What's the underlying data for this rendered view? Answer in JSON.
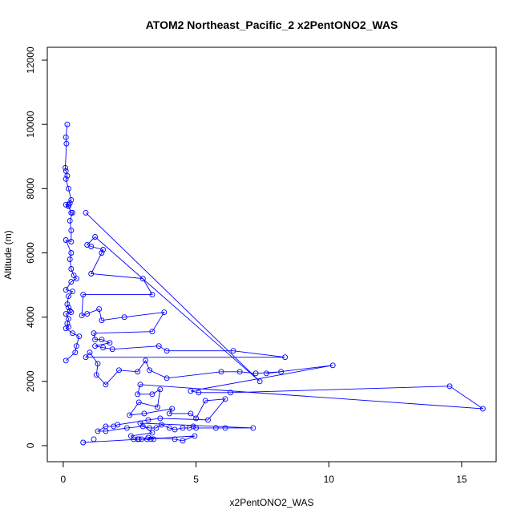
{
  "chart_data": {
    "type": "line",
    "title": "ATOM2 Northeast_Pacific_2 x2PentONO2_WAS",
    "xlabel": "x2PentONO2_WAS",
    "ylabel": "Altitude (m)",
    "xlim": [
      -0.6,
      16.3
    ],
    "ylim": [
      -500,
      12400
    ],
    "xticks": [
      0,
      5,
      10,
      15
    ],
    "yticks": [
      0,
      2000,
      4000,
      6000,
      8000,
      10000,
      12000
    ],
    "grid": false,
    "color": "#0000ff",
    "marker": "open-circle",
    "series": [
      {
        "points": [
          [
            0.15,
            10000
          ],
          [
            0.1,
            9600
          ],
          [
            0.12,
            9400
          ],
          [
            0.08,
            8650
          ],
          [
            0.1,
            8550
          ],
          [
            0.15,
            8400
          ],
          [
            0.1,
            8300
          ],
          [
            0.2,
            8000
          ],
          [
            0.3,
            7650
          ],
          [
            0.25,
            7550
          ],
          [
            0.2,
            7500
          ],
          [
            0.1,
            7500
          ],
          [
            0.2,
            7450
          ],
          [
            0.3,
            7250
          ],
          [
            0.35,
            7250
          ],
          [
            0.25,
            7000
          ],
          [
            0.3,
            6700
          ],
          [
            0.3,
            6350
          ],
          [
            0.1,
            6400
          ],
          [
            0.3,
            6000
          ],
          [
            0.25,
            5800
          ],
          [
            0.3,
            5500
          ],
          [
            0.4,
            5300
          ],
          [
            0.5,
            5200
          ],
          [
            0.3,
            5100
          ],
          [
            0.1,
            4850
          ],
          [
            0.35,
            4800
          ],
          [
            0.2,
            4650
          ],
          [
            0.15,
            4400
          ],
          [
            0.2,
            4300
          ],
          [
            0.25,
            4200
          ],
          [
            0.3,
            4150
          ],
          [
            0.1,
            4100
          ],
          [
            0.2,
            3950
          ],
          [
            0.15,
            3800
          ],
          [
            0.2,
            3700
          ],
          [
            0.1,
            3650
          ],
          [
            0.35,
            3500
          ],
          [
            0.6,
            3400
          ],
          [
            0.5,
            3100
          ],
          [
            0.45,
            2900
          ],
          [
            0.1,
            2650
          ],
          [
            0.85,
            7250
          ],
          [
            1.2,
            6500
          ],
          [
            0.9,
            6250
          ],
          [
            1.05,
            6200
          ],
          [
            1.5,
            6100
          ],
          [
            1.45,
            6000
          ],
          [
            1.05,
            5350
          ],
          [
            3.0,
            5200
          ],
          [
            3.35,
            4700
          ],
          [
            0.75,
            4700
          ],
          [
            0.7,
            4050
          ],
          [
            0.9,
            4100
          ],
          [
            1.35,
            4250
          ],
          [
            1.45,
            3900
          ],
          [
            2.3,
            4000
          ],
          [
            3.8,
            4150
          ],
          [
            3.35,
            3550
          ],
          [
            1.15,
            3500
          ],
          [
            1.2,
            3300
          ],
          [
            1.45,
            3300
          ],
          [
            1.75,
            3200
          ],
          [
            1.2,
            3100
          ],
          [
            1.5,
            3050
          ],
          [
            1.85,
            3000
          ],
          [
            3.6,
            3100
          ],
          [
            3.9,
            2950
          ],
          [
            6.4,
            2950
          ],
          [
            8.35,
            2750
          ],
          [
            0.85,
            2750
          ],
          [
            1.0,
            2900
          ],
          [
            1.3,
            2550
          ],
          [
            1.25,
            2200
          ],
          [
            1.6,
            1900
          ],
          [
            2.1,
            2350
          ],
          [
            2.8,
            2300
          ],
          [
            3.1,
            2650
          ],
          [
            3.25,
            2350
          ],
          [
            3.9,
            2100
          ],
          [
            5.95,
            2300
          ],
          [
            6.65,
            2300
          ],
          [
            7.25,
            2250
          ],
          [
            8.2,
            2300
          ],
          [
            7.65,
            2250
          ],
          [
            10.15,
            2500
          ],
          [
            7.4,
            2000
          ],
          [
            4.8,
            1700
          ],
          [
            5.1,
            1650
          ],
          [
            6.3,
            1650
          ],
          [
            14.55,
            1850
          ],
          [
            15.8,
            1150
          ],
          [
            2.9,
            1900
          ],
          [
            2.8,
            1600
          ],
          [
            3.35,
            1600
          ],
          [
            3.65,
            1750
          ],
          [
            3.55,
            1200
          ],
          [
            2.85,
            1350
          ],
          [
            2.5,
            950
          ],
          [
            3.05,
            1000
          ],
          [
            4.1,
            1150
          ],
          [
            4.0,
            1000
          ],
          [
            4.8,
            1000
          ],
          [
            5.0,
            850
          ],
          [
            5.35,
            1400
          ],
          [
            6.1,
            1450
          ],
          [
            5.45,
            800
          ],
          [
            3.65,
            850
          ],
          [
            3.2,
            800
          ],
          [
            2.05,
            650
          ],
          [
            1.9,
            600
          ],
          [
            1.6,
            600
          ],
          [
            1.3,
            450
          ],
          [
            1.6,
            450
          ],
          [
            2.4,
            550
          ],
          [
            3.0,
            600
          ],
          [
            3.25,
            550
          ],
          [
            3.5,
            550
          ],
          [
            3.7,
            650
          ],
          [
            4.0,
            550
          ],
          [
            4.2,
            500
          ],
          [
            4.5,
            550
          ],
          [
            4.75,
            550
          ],
          [
            4.9,
            600
          ],
          [
            5.0,
            550
          ],
          [
            5.75,
            550
          ],
          [
            6.1,
            550
          ],
          [
            7.15,
            550
          ],
          [
            2.9,
            700
          ],
          [
            3.35,
            400
          ],
          [
            2.55,
            300
          ],
          [
            2.65,
            200
          ],
          [
            2.8,
            200
          ],
          [
            2.85,
            200
          ],
          [
            2.95,
            200
          ],
          [
            3.15,
            200
          ],
          [
            3.3,
            200
          ],
          [
            3.4,
            200
          ],
          [
            3.2,
            250
          ],
          [
            4.2,
            200
          ],
          [
            4.5,
            150
          ],
          [
            4.95,
            300
          ],
          [
            0.75,
            100
          ],
          [
            1.15,
            200
          ]
        ],
        "path": [
          0,
          1,
          2,
          3,
          4,
          5,
          6,
          7,
          8,
          9,
          10,
          11,
          12,
          13,
          14,
          15,
          16,
          17,
          18,
          19,
          20,
          21,
          22,
          23,
          24,
          25,
          26,
          27,
          28,
          29,
          30,
          31,
          32,
          33,
          34,
          35,
          36,
          37,
          38,
          39,
          40,
          41,
          -1,
          42,
          86,
          43,
          44,
          45,
          46,
          47,
          48,
          49,
          50,
          51,
          52,
          53,
          54,
          55,
          56,
          57,
          58,
          59,
          60,
          61,
          62,
          63,
          64,
          65,
          66,
          67,
          68,
          69,
          70,
          71,
          72,
          73,
          74,
          75,
          76,
          77,
          78,
          79,
          80,
          81,
          82,
          83,
          84,
          85,
          87,
          88,
          89,
          90,
          91,
          92,
          93,
          94,
          95,
          96,
          97,
          98,
          99,
          100,
          101,
          102,
          103,
          104,
          105,
          106,
          107,
          108,
          109,
          110,
          111,
          112,
          113,
          114,
          115,
          116,
          117,
          118,
          119,
          120,
          121,
          122,
          123,
          124,
          125,
          126,
          127,
          128,
          129,
          130,
          131,
          132,
          133,
          134,
          135,
          136,
          137,
          138,
          139,
          140,
          141,
          142
        ]
      }
    ]
  }
}
